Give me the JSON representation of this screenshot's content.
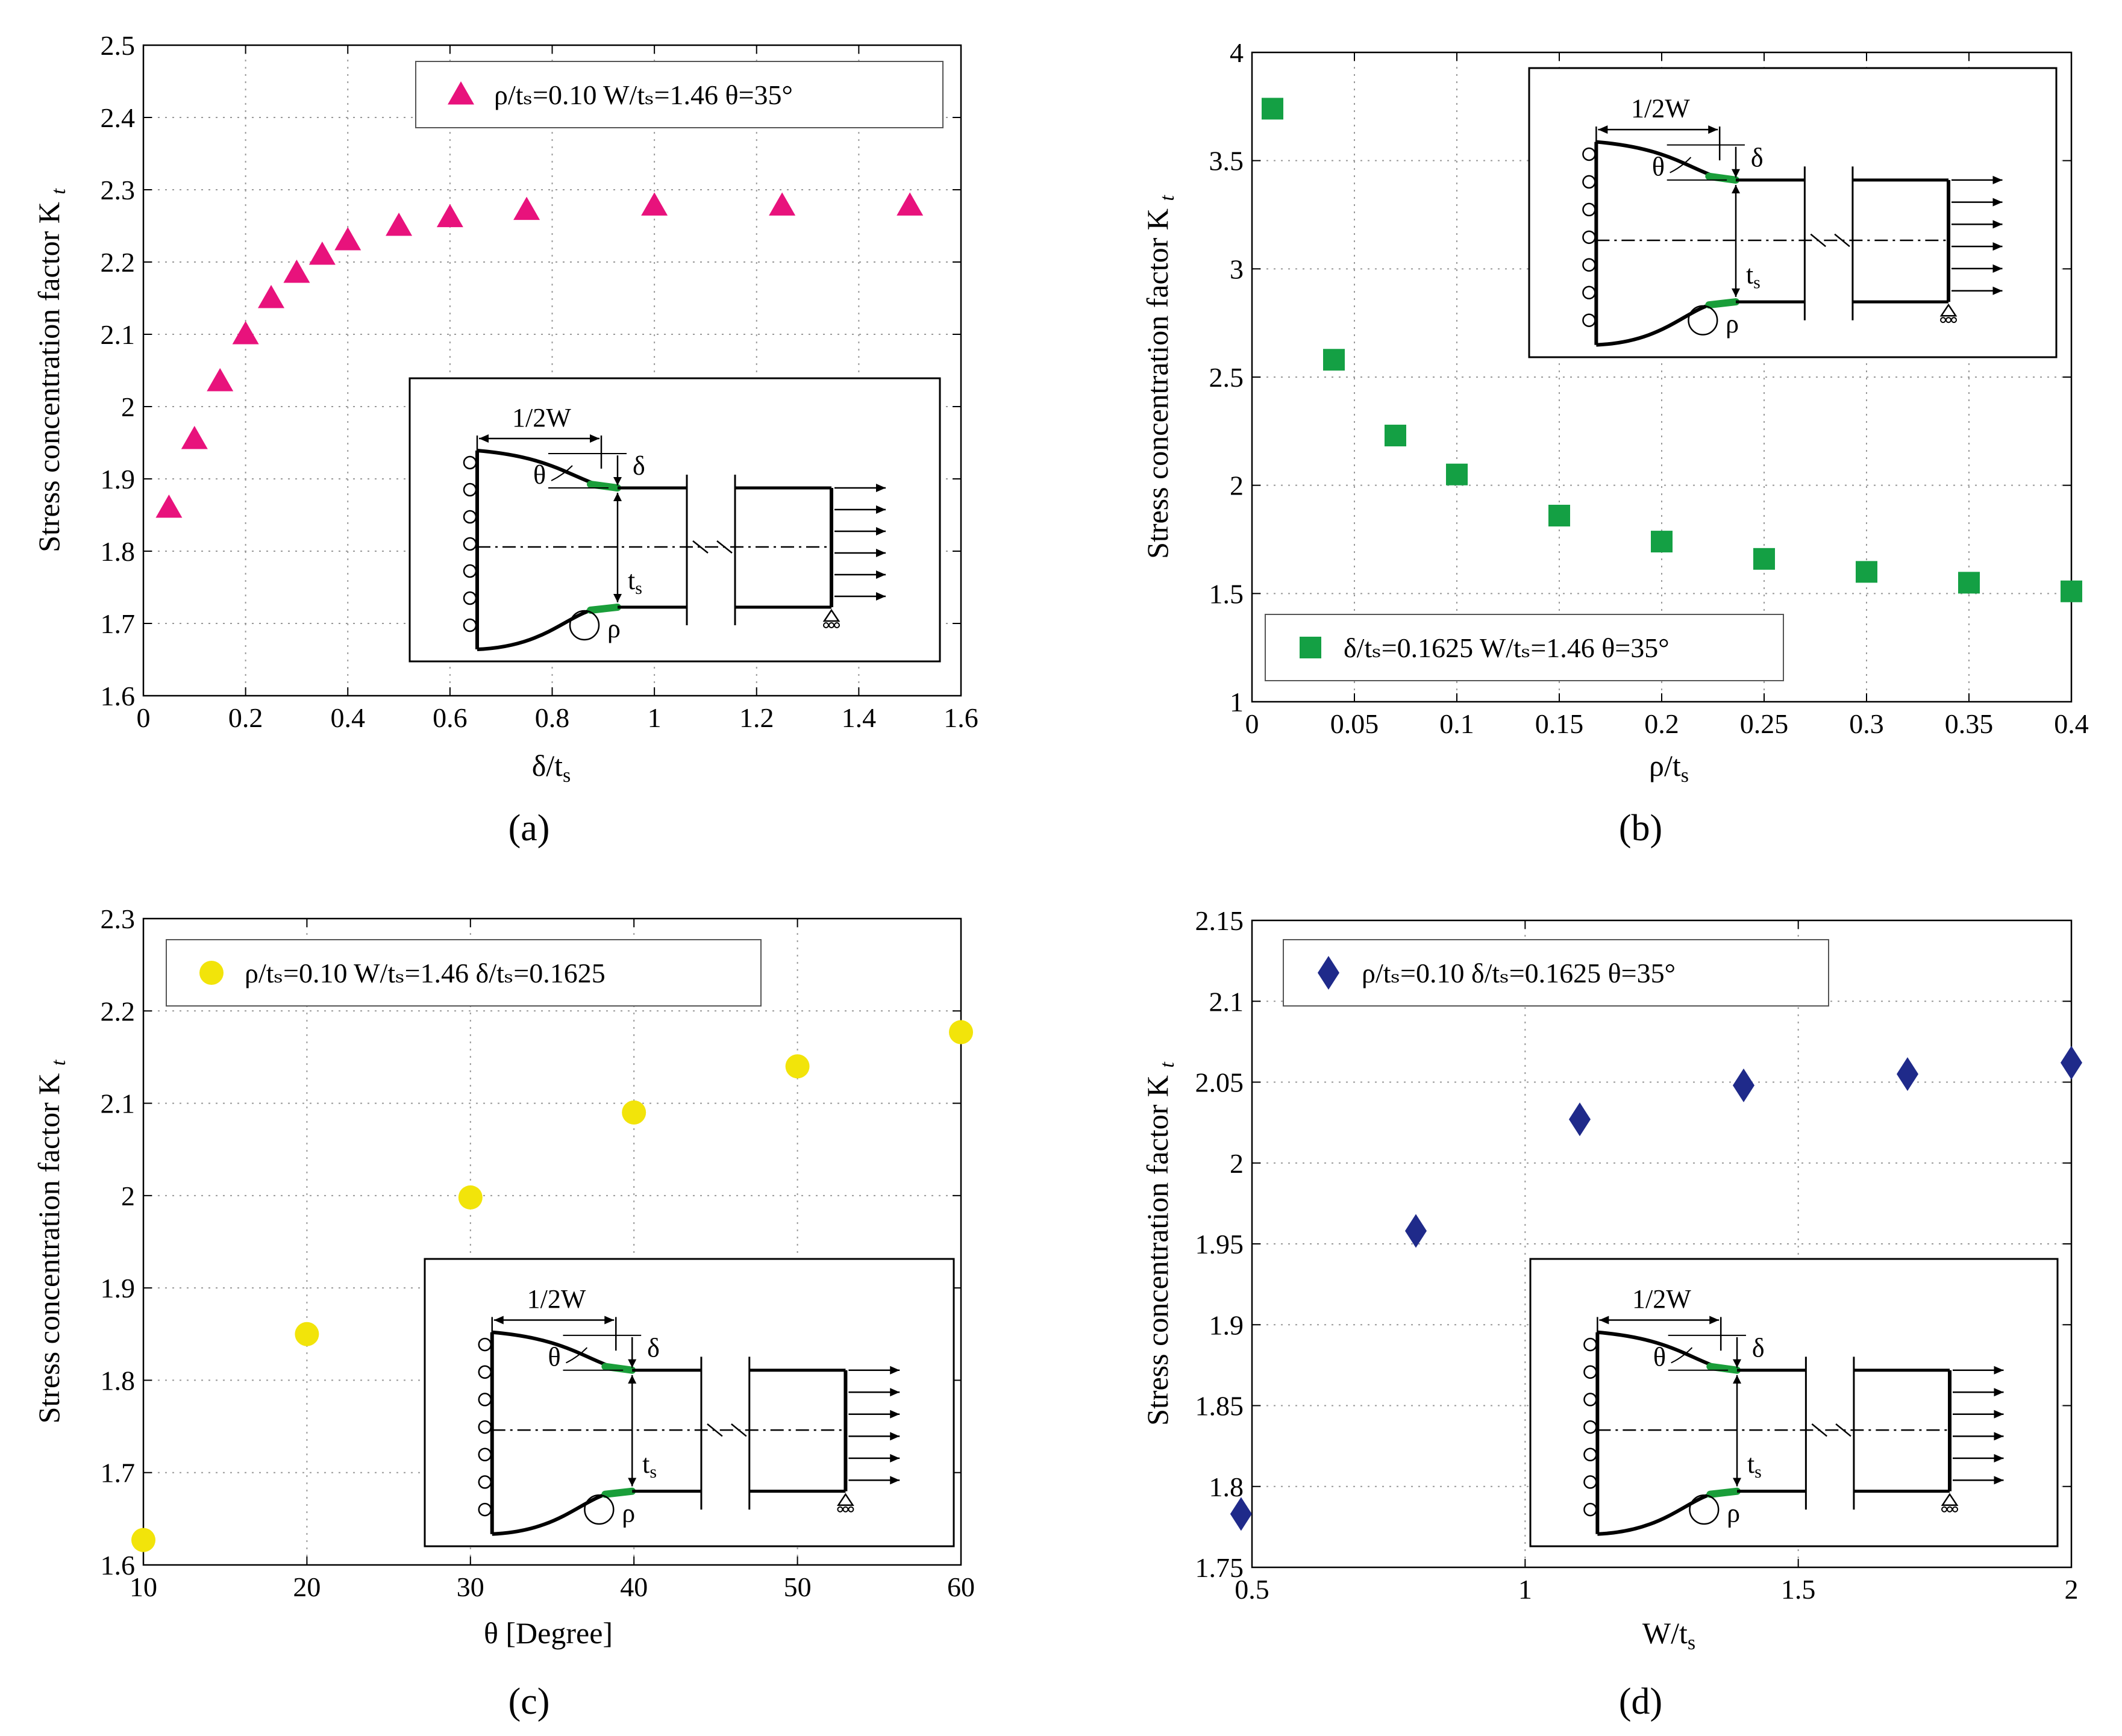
{
  "figure": {
    "panels": [
      {
        "id": "a",
        "label": "(a)"
      },
      {
        "id": "b",
        "label": "(b)"
      },
      {
        "id": "c",
        "label": "(c)"
      },
      {
        "id": "d",
        "label": "(d)"
      }
    ]
  },
  "schematic": {
    "width_label": "1/2W",
    "theta_label": "θ",
    "delta_label": "δ",
    "t_label": "t",
    "t_sub": "s",
    "rho_label": "ρ",
    "fillet_color": "#1a9e3a"
  },
  "chart_data": [
    {
      "type": "scatter",
      "title": "",
      "xlabel": "δ/t",
      "xlabel_sub": "s",
      "ylabel": "Stress concentration factor K",
      "ylabel_sub": "t",
      "xlim": [
        0,
        1.6
      ],
      "ylim": [
        1.6,
        2.5
      ],
      "xticks": [
        "0",
        "0.2",
        "0.4",
        "0.6",
        "0.8",
        "1",
        "1.2",
        "1.4",
        "1.6"
      ],
      "yticks": [
        "1.6",
        "1.7",
        "1.8",
        "1.9",
        "2",
        "2.1",
        "2.2",
        "2.3",
        "2.4",
        "2.5"
      ],
      "grid": true,
      "legend": "top-right",
      "legend_text": "ρ/tₛ=0.10    W/tₛ=1.46    θ=35°",
      "marker": "triangle",
      "color": "#e8127c",
      "x": [
        0.05,
        0.1,
        0.15,
        0.2,
        0.25,
        0.3,
        0.35,
        0.4,
        0.5,
        0.6,
        0.75,
        1.0,
        1.25,
        1.5
      ],
      "y": [
        1.86,
        1.955,
        2.035,
        2.1,
        2.15,
        2.185,
        2.21,
        2.23,
        2.25,
        2.262,
        2.272,
        2.278,
        2.278,
        2.278
      ],
      "inset": "bottom-right"
    },
    {
      "type": "scatter",
      "title": "",
      "xlabel": "ρ/t",
      "xlabel_sub": "s",
      "ylabel": "Stress concentration factor K",
      "ylabel_sub": "t",
      "xlim": [
        0,
        0.4
      ],
      "ylim": [
        1,
        4
      ],
      "xticks": [
        "0",
        "0.05",
        "0.1",
        "0.15",
        "0.2",
        "0.25",
        "0.3",
        "0.35",
        "0.4"
      ],
      "yticks": [
        "1",
        "1.5",
        "2",
        "2.5",
        "3",
        "3.5",
        "4"
      ],
      "grid": true,
      "legend": "bottom-right",
      "legend_text": "δ/tₛ=0.1625    W/tₛ=1.46    θ=35°",
      "marker": "square",
      "color": "#14a044",
      "x": [
        0.01,
        0.04,
        0.07,
        0.1,
        0.15,
        0.2,
        0.25,
        0.3,
        0.35,
        0.4
      ],
      "y": [
        3.74,
        2.58,
        2.23,
        2.05,
        1.86,
        1.74,
        1.66,
        1.6,
        1.55,
        1.51
      ],
      "inset": "top-right"
    },
    {
      "type": "scatter",
      "title": "",
      "xlabel": "θ [Degree]",
      "xlabel_sub": "",
      "ylabel": "Stress concentration factor K",
      "ylabel_sub": "t",
      "xlim": [
        10,
        60
      ],
      "ylim": [
        1.6,
        2.3
      ],
      "xticks": [
        "10",
        "20",
        "30",
        "40",
        "50",
        "60"
      ],
      "yticks": [
        "1.6",
        "1.7",
        "1.8",
        "1.9",
        "2",
        "2.1",
        "2.2",
        "2.3"
      ],
      "grid": true,
      "legend": "top-left",
      "legend_text": "ρ/tₛ=0.10    W/tₛ=1.46    δ/tₛ=0.1625",
      "marker": "circle",
      "color": "#f2e40a",
      "x": [
        10,
        20,
        30,
        40,
        50,
        60
      ],
      "y": [
        1.627,
        1.85,
        1.998,
        2.09,
        2.14,
        2.177
      ],
      "inset": "bottom-right"
    },
    {
      "type": "scatter",
      "title": "",
      "xlabel": "W/t",
      "xlabel_sub": "s",
      "ylabel": "Stress concentration factor K",
      "ylabel_sub": "t",
      "xlim": [
        0.5,
        2
      ],
      "ylim": [
        1.75,
        2.15
      ],
      "xticks": [
        "0.5",
        "1",
        "1.5",
        "2"
      ],
      "yticks": [
        "1.75",
        "1.8",
        "1.85",
        "1.9",
        "1.95",
        "2",
        "2.05",
        "2.1",
        "2.15"
      ],
      "grid": true,
      "legend": "top-left",
      "legend_text": "ρ/tₛ=0.10    δ/tₛ=0.1625    θ=35°",
      "marker": "diamond",
      "color": "#1f2a8a",
      "x": [
        0.48,
        0.8,
        1.1,
        1.4,
        1.7,
        2.0
      ],
      "y": [
        1.783,
        1.958,
        2.027,
        2.048,
        2.055,
        2.062
      ],
      "inset": "bottom-right"
    }
  ]
}
